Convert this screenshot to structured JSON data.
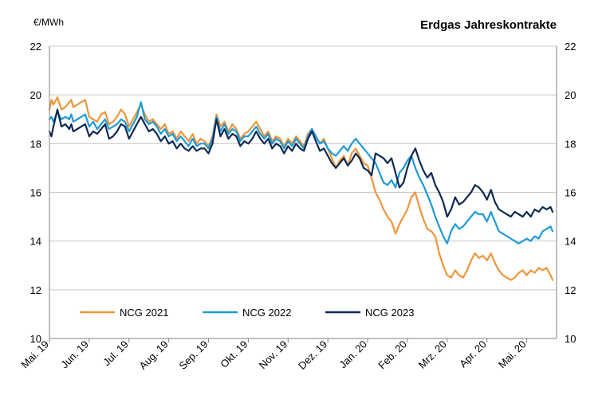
{
  "chart_data": {
    "type": "line",
    "title": "Erdgas Jahreskontrakte",
    "unit": "€/MWh",
    "xlabel": "",
    "ylabel": "€/MWh",
    "ylim": [
      10,
      22
    ],
    "yticks": [
      10,
      12,
      14,
      16,
      18,
      20,
      22
    ],
    "grid": true,
    "legend_position": "bottom-left",
    "x_range": [
      0,
      12.75
    ],
    "categories": [
      "Mai. 19",
      "Jun. 19",
      "Jul. 19",
      "Aug. 19",
      "Sep. 19",
      "Okt. 19",
      "Nov. 19",
      "Dez. 19",
      "Jan. 20",
      "Feb. 20",
      "Mrz. 20",
      "Apr. 20",
      "Mai. 20"
    ],
    "series": [
      {
        "name": "NCG 2021",
        "color": "#F0953B",
        "x": [
          0,
          0.05,
          0.1,
          0.2,
          0.3,
          0.4,
          0.5,
          0.55,
          0.6,
          0.7,
          0.8,
          0.9,
          1.0,
          1.1,
          1.2,
          1.3,
          1.4,
          1.5,
          1.6,
          1.7,
          1.8,
          1.9,
          2.0,
          2.1,
          2.2,
          2.3,
          2.4,
          2.5,
          2.6,
          2.7,
          2.8,
          2.9,
          3.0,
          3.1,
          3.2,
          3.3,
          3.4,
          3.5,
          3.6,
          3.7,
          3.8,
          3.9,
          4.0,
          4.1,
          4.2,
          4.3,
          4.4,
          4.5,
          4.6,
          4.7,
          4.8,
          4.9,
          5.0,
          5.1,
          5.2,
          5.3,
          5.4,
          5.5,
          5.6,
          5.7,
          5.8,
          5.9,
          6.0,
          6.1,
          6.2,
          6.3,
          6.4,
          6.5,
          6.6,
          6.7,
          6.8,
          6.9,
          7.0,
          7.1,
          7.2,
          7.3,
          7.4,
          7.5,
          7.6,
          7.7,
          7.8,
          7.9,
          8.0,
          8.1,
          8.2,
          8.3,
          8.4,
          8.5,
          8.6,
          8.7,
          8.8,
          8.9,
          9.0,
          9.1,
          9.2,
          9.3,
          9.4,
          9.5,
          9.6,
          9.7,
          9.8,
          9.9,
          10.0,
          10.1,
          10.2,
          10.3,
          10.4,
          10.5,
          10.6,
          10.7,
          10.8,
          10.9,
          11.0,
          11.1,
          11.2,
          11.3,
          11.4,
          11.5,
          11.6,
          11.7,
          11.8,
          11.9,
          12.0,
          12.1,
          12.2,
          12.3,
          12.4,
          12.5,
          12.6,
          12.65
        ],
        "values": [
          19.4,
          19.8,
          19.6,
          19.9,
          19.4,
          19.5,
          19.7,
          19.8,
          19.5,
          19.6,
          19.7,
          19.8,
          19.1,
          19.0,
          18.9,
          19.2,
          19.3,
          18.8,
          18.9,
          19.1,
          19.4,
          19.2,
          18.7,
          19.0,
          19.3,
          19.6,
          19.2,
          18.9,
          19.0,
          18.8,
          18.6,
          18.8,
          18.4,
          18.5,
          18.2,
          18.5,
          18.3,
          18.1,
          18.4,
          18.0,
          18.2,
          18.1,
          17.9,
          18.3,
          19.2,
          18.7,
          18.9,
          18.5,
          18.8,
          18.6,
          18.2,
          18.4,
          18.5,
          18.7,
          18.9,
          18.6,
          18.3,
          18.5,
          18.1,
          18.3,
          18.2,
          17.9,
          18.2,
          18.0,
          18.3,
          18.1,
          17.9,
          18.4,
          18.6,
          18.3,
          18.0,
          18.2,
          17.8,
          17.4,
          17.0,
          17.3,
          17.5,
          17.1,
          17.6,
          17.8,
          17.5,
          17.2,
          17.1,
          16.6,
          16.0,
          15.7,
          15.3,
          15.0,
          14.8,
          14.3,
          14.7,
          15.0,
          15.3,
          15.8,
          16.0,
          15.4,
          14.9,
          14.5,
          14.4,
          14.2,
          13.5,
          13.0,
          12.6,
          12.5,
          12.8,
          12.6,
          12.5,
          12.8,
          13.2,
          13.5,
          13.3,
          13.4,
          13.2,
          13.5,
          13.1,
          12.8,
          12.6,
          12.5,
          12.4,
          12.5,
          12.7,
          12.8,
          12.6,
          12.8,
          12.7,
          12.9,
          12.8,
          12.9,
          12.6,
          12.4
        ]
      },
      {
        "name": "NCG 2022",
        "color": "#1F9AD6",
        "x": [
          0,
          0.05,
          0.1,
          0.2,
          0.3,
          0.4,
          0.5,
          0.55,
          0.6,
          0.7,
          0.8,
          0.9,
          1.0,
          1.1,
          1.2,
          1.3,
          1.4,
          1.5,
          1.6,
          1.7,
          1.8,
          1.9,
          2.0,
          2.1,
          2.2,
          2.3,
          2.4,
          2.5,
          2.6,
          2.7,
          2.8,
          2.9,
          3.0,
          3.1,
          3.2,
          3.3,
          3.4,
          3.5,
          3.6,
          3.7,
          3.8,
          3.9,
          4.0,
          4.1,
          4.2,
          4.3,
          4.4,
          4.5,
          4.6,
          4.7,
          4.8,
          4.9,
          5.0,
          5.1,
          5.2,
          5.3,
          5.4,
          5.5,
          5.6,
          5.7,
          5.8,
          5.9,
          6.0,
          6.1,
          6.2,
          6.3,
          6.4,
          6.5,
          6.6,
          6.7,
          6.8,
          6.9,
          7.0,
          7.1,
          7.2,
          7.3,
          7.4,
          7.5,
          7.6,
          7.7,
          7.8,
          7.9,
          8.0,
          8.1,
          8.2,
          8.3,
          8.4,
          8.5,
          8.6,
          8.7,
          8.8,
          8.9,
          9.0,
          9.1,
          9.2,
          9.3,
          9.4,
          9.5,
          9.6,
          9.7,
          9.8,
          9.9,
          10.0,
          10.1,
          10.2,
          10.3,
          10.4,
          10.5,
          10.6,
          10.7,
          10.8,
          10.9,
          11.0,
          11.1,
          11.2,
          11.3,
          11.4,
          11.5,
          11.6,
          11.7,
          11.8,
          11.9,
          12.0,
          12.1,
          12.2,
          12.3,
          12.4,
          12.5,
          12.6,
          12.65
        ],
        "values": [
          19.0,
          19.1,
          18.9,
          19.3,
          19.0,
          19.1,
          19.0,
          19.2,
          18.9,
          19.0,
          19.1,
          19.2,
          18.7,
          18.9,
          18.6,
          18.8,
          19.0,
          18.6,
          18.7,
          18.8,
          19.0,
          18.9,
          18.5,
          18.8,
          19.1,
          19.7,
          19.0,
          18.8,
          18.9,
          18.7,
          18.4,
          18.6,
          18.3,
          18.4,
          18.1,
          18.3,
          18.1,
          17.9,
          18.2,
          17.9,
          18.0,
          18.0,
          17.8,
          18.2,
          19.1,
          18.5,
          18.8,
          18.4,
          18.6,
          18.5,
          18.1,
          18.3,
          18.3,
          18.5,
          18.7,
          18.4,
          18.2,
          18.4,
          18.0,
          18.2,
          18.1,
          17.8,
          18.1,
          17.9,
          18.2,
          18.0,
          17.8,
          18.3,
          18.6,
          18.3,
          18.0,
          18.1,
          17.8,
          17.6,
          17.5,
          17.7,
          17.9,
          17.7,
          18.0,
          18.2,
          18.0,
          17.8,
          17.6,
          17.4,
          17.2,
          16.8,
          16.4,
          16.3,
          16.5,
          16.2,
          16.8,
          17.0,
          17.3,
          17.5,
          17.0,
          16.6,
          16.3,
          15.9,
          15.5,
          15.0,
          14.6,
          14.2,
          13.9,
          14.4,
          14.7,
          14.5,
          14.6,
          14.8,
          15.0,
          15.2,
          15.1,
          15.1,
          14.8,
          15.2,
          14.8,
          14.4,
          14.3,
          14.2,
          14.1,
          14.0,
          13.9,
          14.0,
          14.1,
          14.0,
          14.2,
          14.1,
          14.4,
          14.5,
          14.6,
          14.4
        ]
      },
      {
        "name": "NCG 2023",
        "color": "#0E2A52",
        "x": [
          0,
          0.05,
          0.1,
          0.2,
          0.3,
          0.4,
          0.5,
          0.55,
          0.6,
          0.7,
          0.8,
          0.9,
          1.0,
          1.1,
          1.2,
          1.3,
          1.4,
          1.5,
          1.6,
          1.7,
          1.8,
          1.9,
          2.0,
          2.1,
          2.2,
          2.3,
          2.4,
          2.5,
          2.6,
          2.7,
          2.8,
          2.9,
          3.0,
          3.1,
          3.2,
          3.3,
          3.4,
          3.5,
          3.6,
          3.7,
          3.8,
          3.9,
          4.0,
          4.1,
          4.2,
          4.3,
          4.4,
          4.5,
          4.6,
          4.7,
          4.8,
          4.9,
          5.0,
          5.1,
          5.2,
          5.3,
          5.4,
          5.5,
          5.6,
          5.7,
          5.8,
          5.9,
          6.0,
          6.1,
          6.2,
          6.3,
          6.4,
          6.5,
          6.6,
          6.7,
          6.8,
          6.9,
          7.0,
          7.1,
          7.2,
          7.3,
          7.4,
          7.5,
          7.6,
          7.7,
          7.8,
          7.9,
          8.0,
          8.1,
          8.2,
          8.3,
          8.4,
          8.5,
          8.6,
          8.7,
          8.8,
          8.9,
          9.0,
          9.1,
          9.2,
          9.3,
          9.4,
          9.5,
          9.6,
          9.7,
          9.8,
          9.9,
          10.0,
          10.1,
          10.2,
          10.3,
          10.4,
          10.5,
          10.6,
          10.7,
          10.8,
          10.9,
          11.0,
          11.1,
          11.2,
          11.3,
          11.4,
          11.5,
          11.6,
          11.7,
          11.8,
          11.9,
          12.0,
          12.1,
          12.2,
          12.3,
          12.4,
          12.5,
          12.6,
          12.65
        ],
        "values": [
          18.5,
          18.3,
          18.7,
          19.4,
          18.7,
          18.8,
          18.6,
          18.8,
          18.5,
          18.6,
          18.7,
          18.8,
          18.3,
          18.5,
          18.4,
          18.6,
          18.8,
          18.2,
          18.3,
          18.5,
          18.8,
          18.7,
          18.2,
          18.5,
          18.8,
          19.1,
          18.8,
          18.5,
          18.6,
          18.4,
          18.1,
          18.3,
          18.0,
          18.1,
          17.8,
          18.0,
          17.8,
          17.7,
          17.9,
          17.7,
          17.8,
          17.8,
          17.6,
          18.0,
          19.0,
          18.3,
          18.6,
          18.2,
          18.4,
          18.3,
          17.9,
          18.1,
          18.0,
          18.2,
          18.5,
          18.2,
          18.0,
          18.2,
          17.8,
          18.0,
          17.9,
          17.6,
          17.9,
          17.7,
          18.0,
          17.8,
          17.7,
          18.2,
          18.5,
          18.1,
          17.7,
          17.8,
          17.5,
          17.2,
          17.0,
          17.2,
          17.4,
          17.1,
          17.3,
          17.6,
          17.4,
          17.0,
          16.9,
          16.7,
          17.6,
          17.5,
          17.4,
          17.2,
          17.4,
          16.8,
          16.2,
          16.4,
          17.0,
          17.5,
          17.8,
          17.3,
          16.9,
          16.6,
          16.8,
          16.3,
          16.0,
          15.6,
          15.0,
          15.3,
          15.8,
          15.5,
          15.6,
          15.8,
          16.0,
          16.3,
          16.2,
          16.0,
          15.7,
          16.1,
          15.6,
          15.3,
          15.2,
          15.1,
          15.0,
          15.2,
          15.1,
          15.0,
          15.2,
          15.0,
          15.3,
          15.2,
          15.4,
          15.3,
          15.4,
          15.2
        ]
      }
    ]
  }
}
